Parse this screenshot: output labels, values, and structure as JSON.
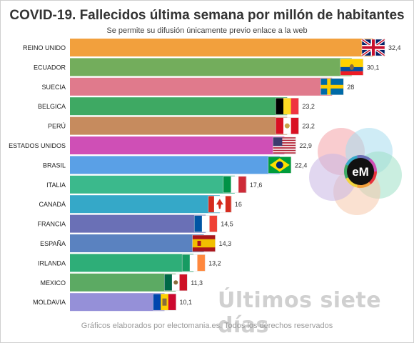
{
  "header": {
    "title": "COVID-19. Fallecidos última semana por millón de habitantes",
    "subtitle": "Se permite su difusión únicamente previo enlace a la web"
  },
  "footer": {
    "text": "Gráficos elaborados por electomania.es. Todos los derechos reservados"
  },
  "watermark": {
    "text": "Últimos siete días"
  },
  "logo": {
    "text": "eM",
    "colors": [
      "#f4a3a8",
      "#a8dcef",
      "#9fe0c6",
      "#f6c9ac",
      "#c9b7e3"
    ]
  },
  "chart_data": {
    "type": "bar",
    "orientation": "horizontal",
    "categories": [
      "REINO UNIDO",
      "ECUADOR",
      "SUECIA",
      "BELGICA",
      "PERÚ",
      "ESTADOS UNIDOS",
      "BRASIL",
      "ITALIA",
      "CANADÁ",
      "FRANCIA",
      "ESPAÑA",
      "IRLANDA",
      "MEXICO",
      "MOLDAVIA"
    ],
    "values": [
      32.4,
      30.1,
      28,
      23.2,
      23.2,
      22.9,
      22.4,
      17.6,
      16,
      14.5,
      14.3,
      13.2,
      11.3,
      10.1
    ],
    "value_labels": [
      "32,4",
      "30,1",
      "28",
      "23,2",
      "23,2",
      "22,9",
      "22,4",
      "17,6",
      "16",
      "14,5",
      "14,3",
      "13,2",
      "11,3",
      "10,1"
    ],
    "colors": [
      "#f2a03d",
      "#73ad5c",
      "#e07a8c",
      "#3ea963",
      "#c68b5e",
      "#cf4fb6",
      "#5aa0e6",
      "#3bb98c",
      "#35a8c8",
      "#6a70b6",
      "#5a82c0",
      "#2eae78",
      "#5caa63",
      "#9590d8"
    ],
    "flags": [
      "uk-flag-icon",
      "ecuador-flag-icon",
      "sweden-flag-icon",
      "belgium-flag-icon",
      "peru-flag-icon",
      "usa-flag-icon",
      "brazil-flag-icon",
      "italy-flag-icon",
      "canada-flag-icon",
      "france-flag-icon",
      "spain-flag-icon",
      "ireland-flag-icon",
      "mexico-flag-icon",
      "moldova-flag-icon"
    ],
    "xlim": [
      0,
      32.4
    ],
    "grid": false,
    "legend": "none"
  }
}
